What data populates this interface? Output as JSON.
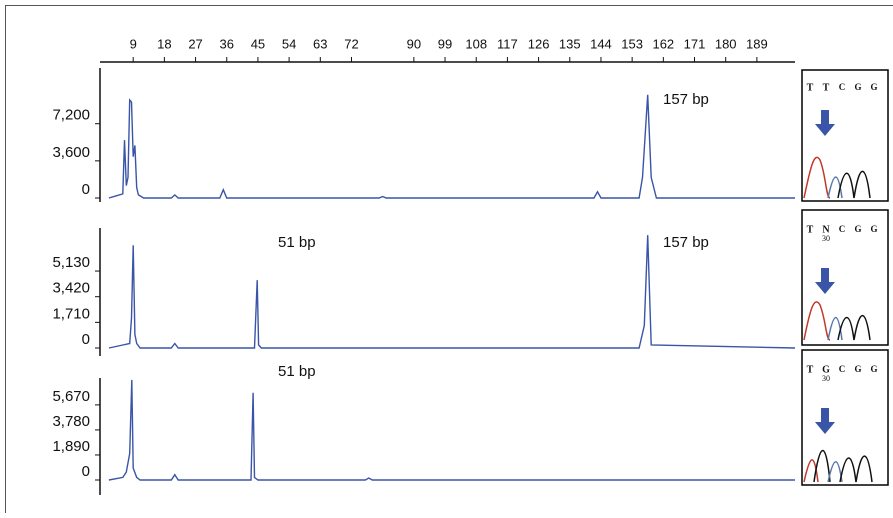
{
  "chart_data": [
    {
      "type": "line",
      "xlim": [
        0,
        200
      ],
      "xticks": [
        9,
        18,
        27,
        36,
        45,
        54,
        63,
        72,
        90,
        99,
        108,
        117,
        126,
        135,
        144,
        153,
        162,
        171,
        180,
        189
      ],
      "ylim": [
        0,
        12600
      ],
      "yticks": [
        0,
        {
          "value": 3600,
          "label": "3,600"
        },
        {
          "value": 7200,
          "label": "7,200"
        }
      ],
      "annotations": [
        "157 bp"
      ],
      "series": [
        {
          "color": "#3a55a8",
          "x": [
            2,
            4,
            6,
            6.5,
            7,
            7.5,
            8,
            8.5,
            9,
            9.5,
            10,
            10.5,
            11,
            12,
            20,
            21,
            22,
            34,
            35,
            36,
            80,
            81,
            82,
            142,
            143,
            144,
            155,
            156,
            157.5,
            158.5,
            160,
            200
          ],
          "values": [
            0,
            200,
            400,
            5600,
            1200,
            2000,
            9500,
            9300,
            4000,
            5100,
            1000,
            300,
            200,
            0,
            0,
            300,
            0,
            0,
            800,
            0,
            0,
            150,
            0,
            0,
            600,
            0,
            0,
            2000,
            10000,
            2000,
            0,
            0
          ]
        }
      ]
    },
    {
      "type": "line",
      "xlim": [
        0,
        200
      ],
      "ylim": [
        0,
        8000
      ],
      "yticks": [
        0,
        {
          "value": 1710,
          "label": "1,710"
        },
        {
          "value": 3420,
          "label": "3,420"
        },
        {
          "value": 5130,
          "label": "5,130"
        }
      ],
      "annotations": [
        "51 bp",
        "157 bp"
      ],
      "series": [
        {
          "color": "#3a55a8",
          "x": [
            2,
            6,
            8,
            8.5,
            9,
            9.5,
            10,
            11,
            20,
            21,
            22,
            44,
            44.8,
            45.2,
            46,
            155,
            156.5,
            157.5,
            158.5,
            200
          ],
          "values": [
            0,
            200,
            300,
            2000,
            6850,
            900,
            300,
            0,
            0,
            300,
            0,
            0,
            4525,
            200,
            0,
            0,
            1500,
            7520,
            200,
            0
          ]
        }
      ]
    },
    {
      "type": "line",
      "xlim": [
        0,
        200
      ],
      "ylim": [
        0,
        7700
      ],
      "yticks": [
        0,
        {
          "value": 1890,
          "label": "1,890"
        },
        {
          "value": 3780,
          "label": "3,780"
        },
        {
          "value": 5670,
          "label": "5,670"
        }
      ],
      "annotations": [
        "51 bp"
      ],
      "series": [
        {
          "color": "#3a55a8",
          "x": [
            2,
            6,
            7,
            8,
            8.6,
            9,
            10,
            11,
            20,
            21,
            22,
            43,
            43.6,
            44,
            45,
            76,
            77,
            78,
            200
          ],
          "values": [
            0,
            200,
            600,
            2000,
            7560,
            900,
            200,
            0,
            0,
            400,
            0,
            0,
            6580,
            200,
            0,
            0,
            150,
            0,
            0
          ]
        }
      ]
    }
  ],
  "insets": [
    {
      "bases": [
        "T",
        "T",
        "C",
        "G",
        "G"
      ]
    },
    {
      "bases": [
        "T",
        "N",
        "C",
        "G",
        "G"
      ],
      "position": "30"
    },
    {
      "bases": [
        "T",
        "G",
        "C",
        "G",
        "G"
      ],
      "position": "30"
    }
  ]
}
